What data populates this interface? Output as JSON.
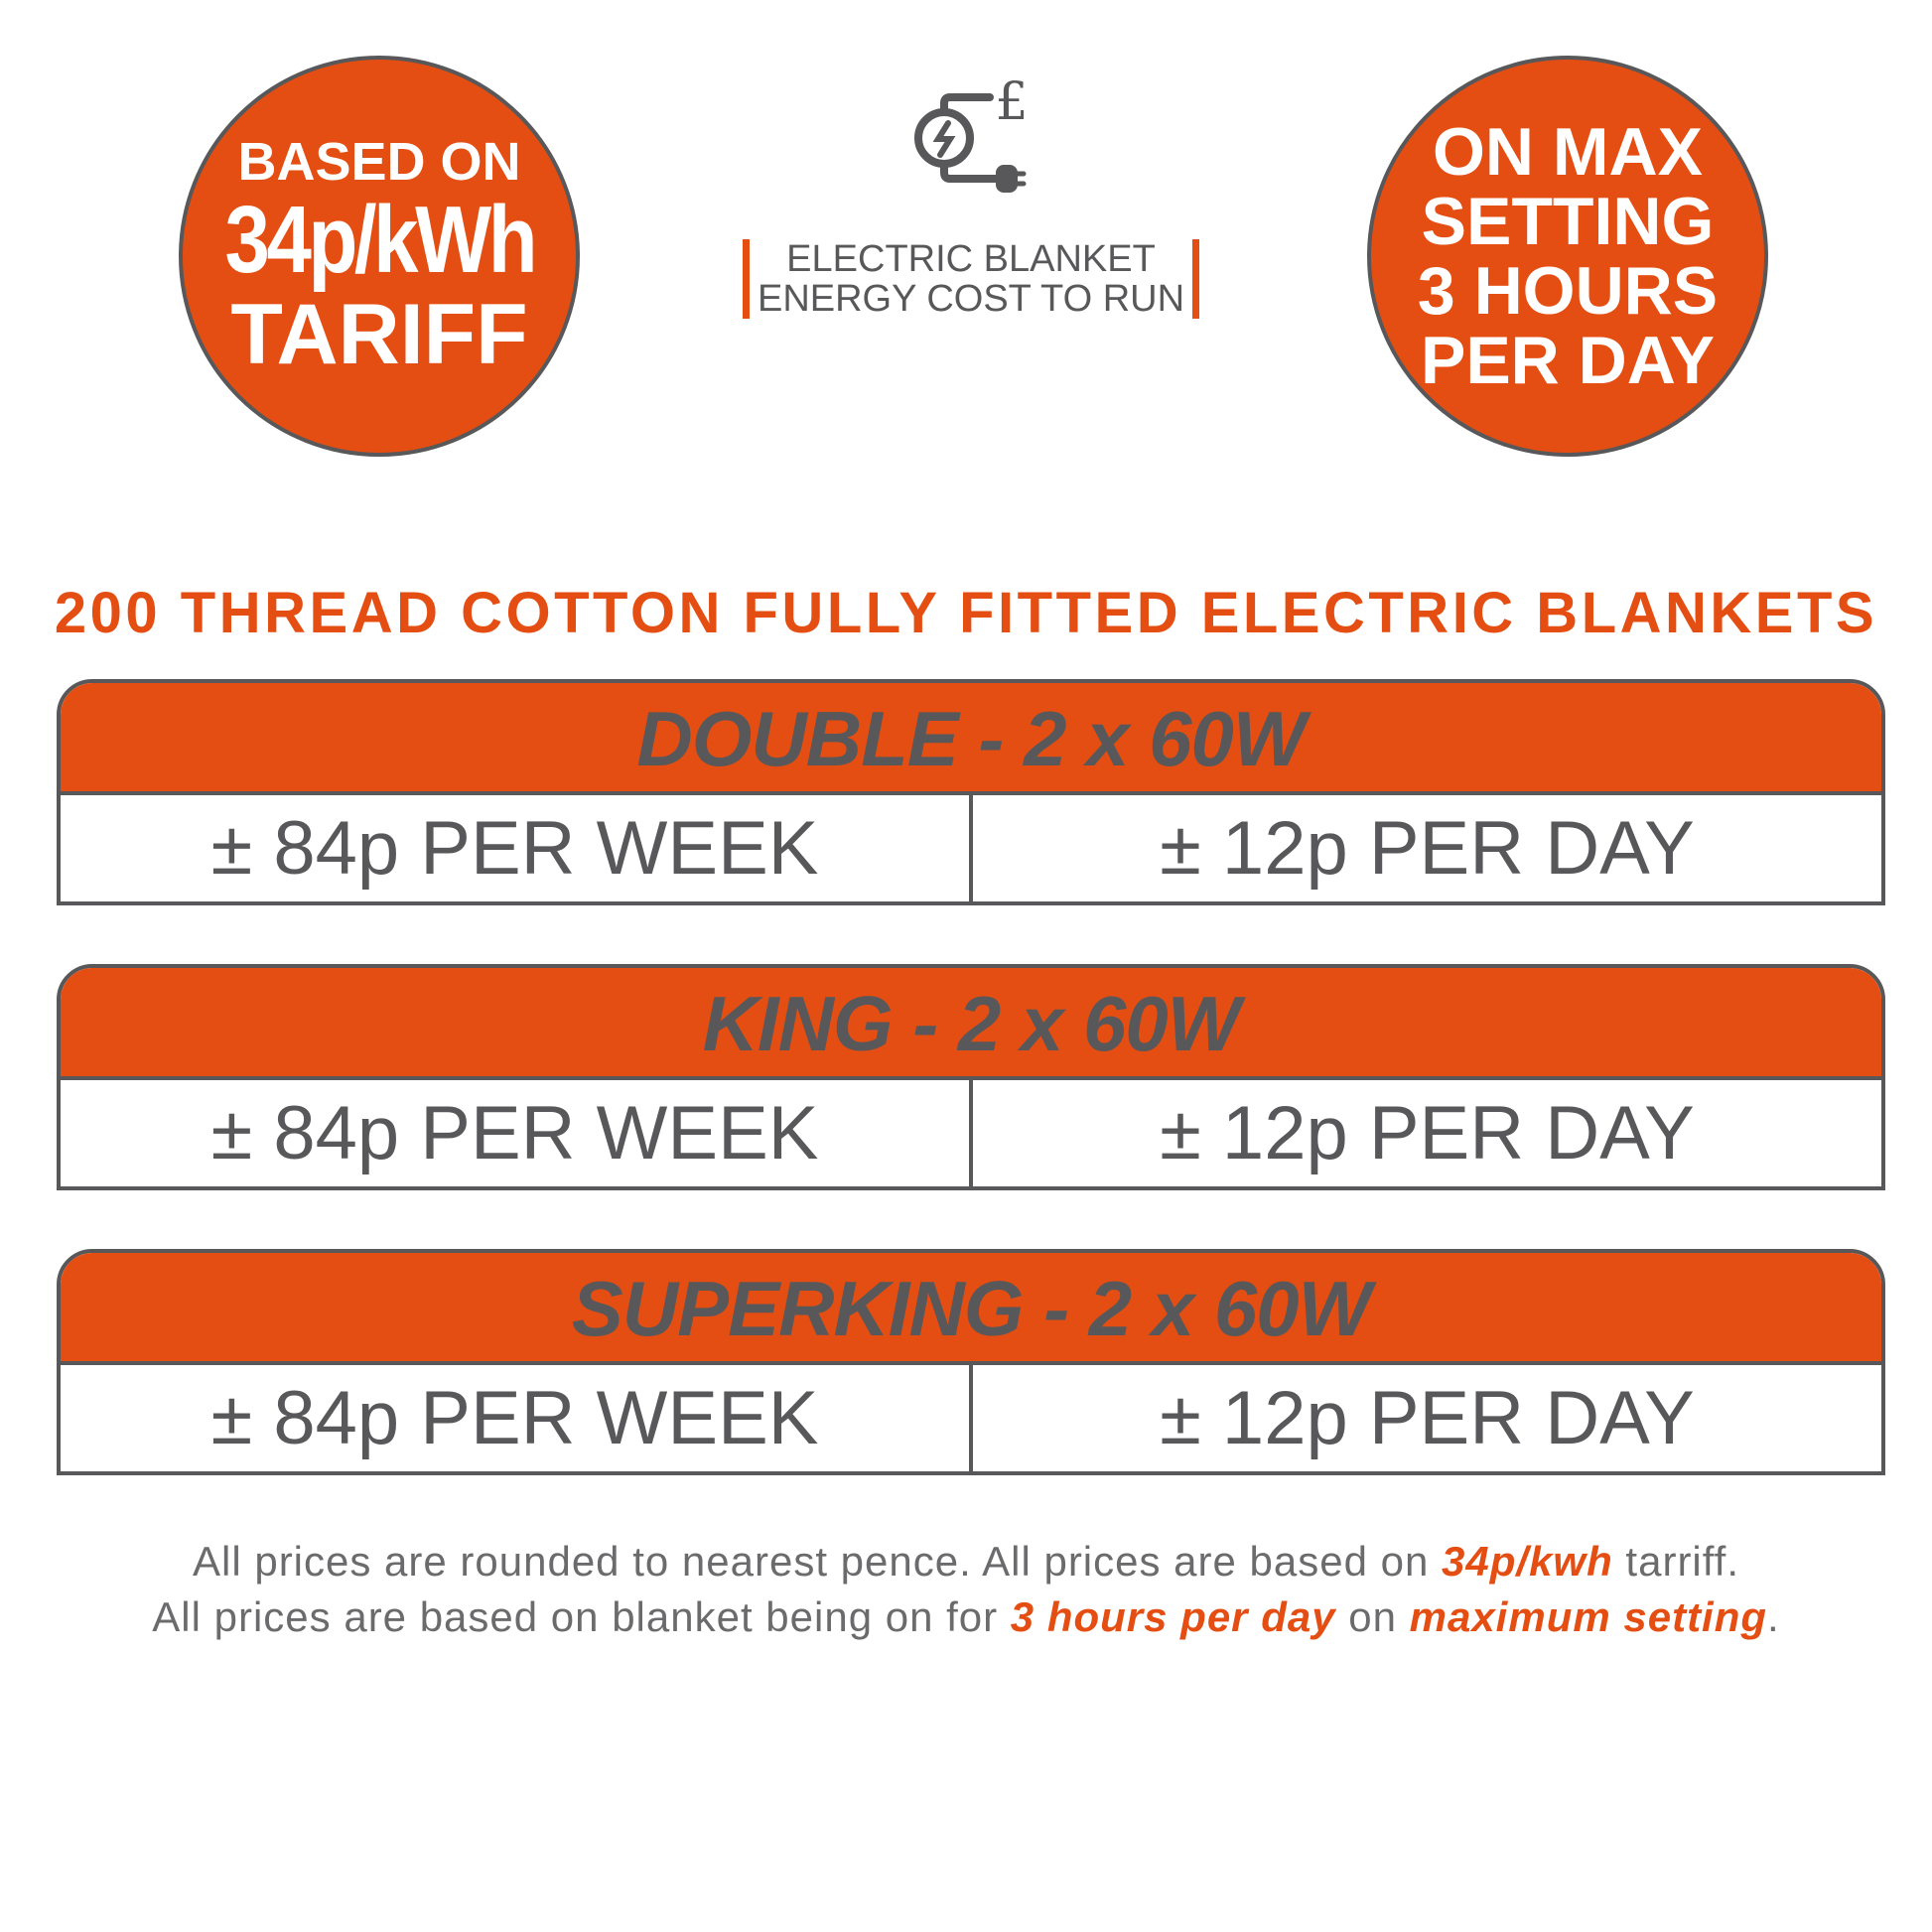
{
  "badge_left": {
    "line1": "BASED ON",
    "line2": "34p/kWh",
    "line3": "TARIFF"
  },
  "badge_right": {
    "line1": "ON MAX",
    "line2": "SETTING",
    "line3": "3 HOURS",
    "line4": "PER DAY"
  },
  "icon": "electricity-cost-plug-pound-icon",
  "subtitle": {
    "line1": "ELECTRIC BLANKET",
    "line2": "ENERGY COST TO RUN"
  },
  "heading": "200 THREAD COTTON FULLY FITTED ELECTRIC BLANKETS",
  "sizes": [
    {
      "title": "DOUBLE - 2 x 60W",
      "week": "± 84p PER WEEK",
      "day": "± 12p PER DAY"
    },
    {
      "title": "KING - 2 x 60W",
      "week": "± 84p PER WEEK",
      "day": "± 12p PER DAY"
    },
    {
      "title": "SUPERKING - 2 x 60W",
      "week": "± 84p PER WEEK",
      "day": "± 12p PER DAY"
    }
  ],
  "footer": {
    "l1a": "All prices are rounded to nearest pence. All prices are based on ",
    "l1b": "34p/kwh",
    "l1c": " tarriff.",
    "l2a": "All prices are based on blanket being on for ",
    "l2b": "3 hours per day",
    "l2c": " on ",
    "l2d": "maximum setting",
    "l2e": "."
  },
  "colors": {
    "accent": "#e54e12",
    "text": "#58585a"
  }
}
